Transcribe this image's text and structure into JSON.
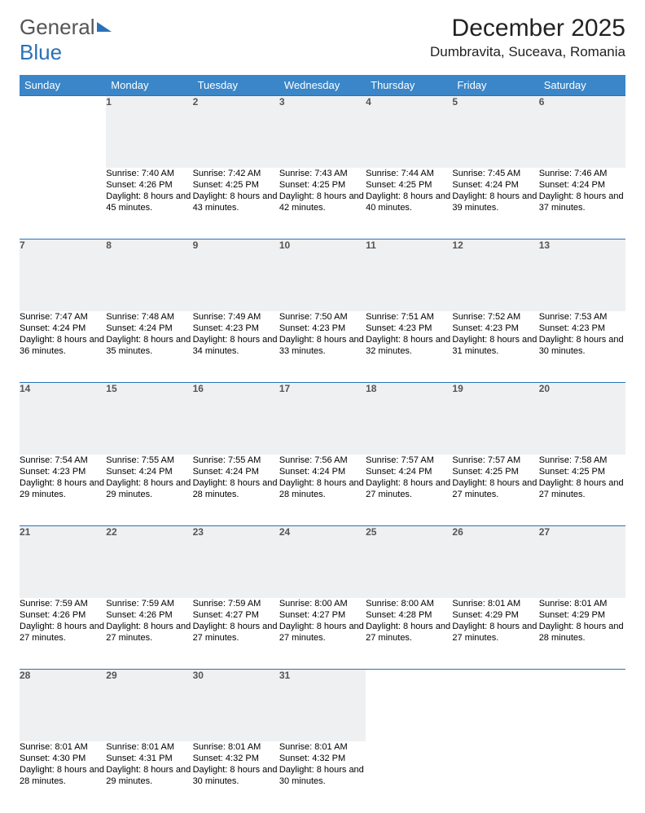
{
  "logo": {
    "part1": "General",
    "part2": "Blue"
  },
  "title": "December 2025",
  "location": "Dumbravita, Suceava, Romania",
  "colors": {
    "header_bg": "#3a86c8",
    "header_text": "#ffffff",
    "daynum_bg": "#eef0f2",
    "rule": "#2a71b8",
    "text": "#000000",
    "logo_gray": "#555555",
    "logo_blue": "#2a71b8"
  },
  "weekdays": [
    "Sunday",
    "Monday",
    "Tuesday",
    "Wednesday",
    "Thursday",
    "Friday",
    "Saturday"
  ],
  "weeks": [
    [
      null,
      {
        "n": "1",
        "sr": "7:40 AM",
        "ss": "4:26 PM",
        "dl": "8 hours and 45 minutes."
      },
      {
        "n": "2",
        "sr": "7:42 AM",
        "ss": "4:25 PM",
        "dl": "8 hours and 43 minutes."
      },
      {
        "n": "3",
        "sr": "7:43 AM",
        "ss": "4:25 PM",
        "dl": "8 hours and 42 minutes."
      },
      {
        "n": "4",
        "sr": "7:44 AM",
        "ss": "4:25 PM",
        "dl": "8 hours and 40 minutes."
      },
      {
        "n": "5",
        "sr": "7:45 AM",
        "ss": "4:24 PM",
        "dl": "8 hours and 39 minutes."
      },
      {
        "n": "6",
        "sr": "7:46 AM",
        "ss": "4:24 PM",
        "dl": "8 hours and 37 minutes."
      }
    ],
    [
      {
        "n": "7",
        "sr": "7:47 AM",
        "ss": "4:24 PM",
        "dl": "8 hours and 36 minutes."
      },
      {
        "n": "8",
        "sr": "7:48 AM",
        "ss": "4:24 PM",
        "dl": "8 hours and 35 minutes."
      },
      {
        "n": "9",
        "sr": "7:49 AM",
        "ss": "4:23 PM",
        "dl": "8 hours and 34 minutes."
      },
      {
        "n": "10",
        "sr": "7:50 AM",
        "ss": "4:23 PM",
        "dl": "8 hours and 33 minutes."
      },
      {
        "n": "11",
        "sr": "7:51 AM",
        "ss": "4:23 PM",
        "dl": "8 hours and 32 minutes."
      },
      {
        "n": "12",
        "sr": "7:52 AM",
        "ss": "4:23 PM",
        "dl": "8 hours and 31 minutes."
      },
      {
        "n": "13",
        "sr": "7:53 AM",
        "ss": "4:23 PM",
        "dl": "8 hours and 30 minutes."
      }
    ],
    [
      {
        "n": "14",
        "sr": "7:54 AM",
        "ss": "4:23 PM",
        "dl": "8 hours and 29 minutes."
      },
      {
        "n": "15",
        "sr": "7:55 AM",
        "ss": "4:24 PM",
        "dl": "8 hours and 29 minutes."
      },
      {
        "n": "16",
        "sr": "7:55 AM",
        "ss": "4:24 PM",
        "dl": "8 hours and 28 minutes."
      },
      {
        "n": "17",
        "sr": "7:56 AM",
        "ss": "4:24 PM",
        "dl": "8 hours and 28 minutes."
      },
      {
        "n": "18",
        "sr": "7:57 AM",
        "ss": "4:24 PM",
        "dl": "8 hours and 27 minutes."
      },
      {
        "n": "19",
        "sr": "7:57 AM",
        "ss": "4:25 PM",
        "dl": "8 hours and 27 minutes."
      },
      {
        "n": "20",
        "sr": "7:58 AM",
        "ss": "4:25 PM",
        "dl": "8 hours and 27 minutes."
      }
    ],
    [
      {
        "n": "21",
        "sr": "7:59 AM",
        "ss": "4:26 PM",
        "dl": "8 hours and 27 minutes."
      },
      {
        "n": "22",
        "sr": "7:59 AM",
        "ss": "4:26 PM",
        "dl": "8 hours and 27 minutes."
      },
      {
        "n": "23",
        "sr": "7:59 AM",
        "ss": "4:27 PM",
        "dl": "8 hours and 27 minutes."
      },
      {
        "n": "24",
        "sr": "8:00 AM",
        "ss": "4:27 PM",
        "dl": "8 hours and 27 minutes."
      },
      {
        "n": "25",
        "sr": "8:00 AM",
        "ss": "4:28 PM",
        "dl": "8 hours and 27 minutes."
      },
      {
        "n": "26",
        "sr": "8:01 AM",
        "ss": "4:29 PM",
        "dl": "8 hours and 27 minutes."
      },
      {
        "n": "27",
        "sr": "8:01 AM",
        "ss": "4:29 PM",
        "dl": "8 hours and 28 minutes."
      }
    ],
    [
      {
        "n": "28",
        "sr": "8:01 AM",
        "ss": "4:30 PM",
        "dl": "8 hours and 28 minutes."
      },
      {
        "n": "29",
        "sr": "8:01 AM",
        "ss": "4:31 PM",
        "dl": "8 hours and 29 minutes."
      },
      {
        "n": "30",
        "sr": "8:01 AM",
        "ss": "4:32 PM",
        "dl": "8 hours and 30 minutes."
      },
      {
        "n": "31",
        "sr": "8:01 AM",
        "ss": "4:32 PM",
        "dl": "8 hours and 30 minutes."
      },
      null,
      null,
      null
    ]
  ],
  "labels": {
    "sunrise": "Sunrise:",
    "sunset": "Sunset:",
    "daylight": "Daylight:"
  }
}
